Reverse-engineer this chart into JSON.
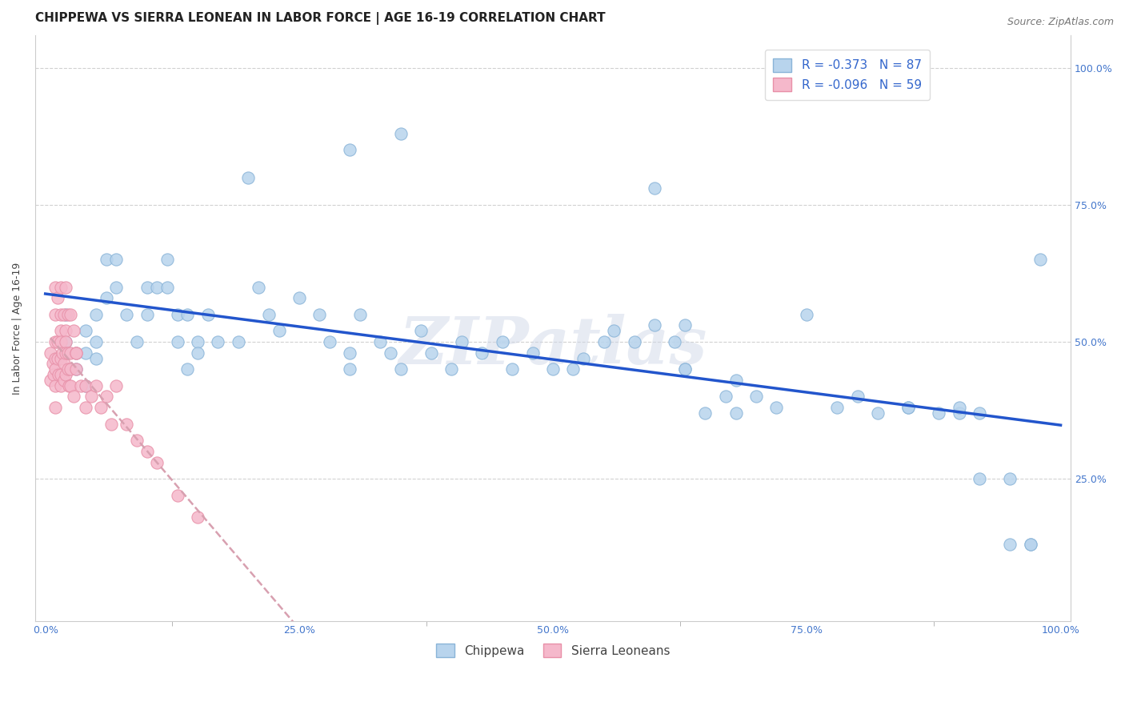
{
  "title": "CHIPPEWA VS SIERRA LEONEAN IN LABOR FORCE | AGE 16-19 CORRELATION CHART",
  "source": "Source: ZipAtlas.com",
  "ylabel": "In Labor Force | Age 16-19",
  "xlim": [
    -0.01,
    1.01
  ],
  "ylim": [
    -0.01,
    1.06
  ],
  "xtick_labels": [
    "0.0%",
    "",
    "25.0%",
    "",
    "50.0%",
    "",
    "75.0%",
    "",
    "100.0%"
  ],
  "xtick_vals": [
    0.0,
    0.125,
    0.25,
    0.375,
    0.5,
    0.625,
    0.75,
    0.875,
    1.0
  ],
  "ytick_labels": [
    "25.0%",
    "50.0%",
    "75.0%",
    "100.0%"
  ],
  "ytick_vals": [
    0.25,
    0.5,
    0.75,
    1.0
  ],
  "chippewa_color": "#b8d4ed",
  "sierra_color": "#f5b8cb",
  "chippewa_edge": "#8ab4d8",
  "sierra_edge": "#e890a8",
  "trend_blue": "#2255cc",
  "trend_pink": "#d8a0b0",
  "R_chippewa": -0.373,
  "N_chippewa": 87,
  "R_sierra": -0.096,
  "N_sierra": 59,
  "background": "#ffffff",
  "grid_color": "#cccccc",
  "watermark": "ZIPatlas",
  "chippewa_x": [
    0.02,
    0.02,
    0.03,
    0.03,
    0.04,
    0.04,
    0.04,
    0.05,
    0.05,
    0.05,
    0.06,
    0.06,
    0.07,
    0.07,
    0.08,
    0.09,
    0.1,
    0.1,
    0.11,
    0.12,
    0.12,
    0.13,
    0.13,
    0.14,
    0.14,
    0.15,
    0.15,
    0.16,
    0.17,
    0.19,
    0.21,
    0.22,
    0.23,
    0.25,
    0.27,
    0.28,
    0.3,
    0.3,
    0.31,
    0.33,
    0.34,
    0.35,
    0.37,
    0.38,
    0.4,
    0.41,
    0.43,
    0.45,
    0.46,
    0.48,
    0.5,
    0.52,
    0.53,
    0.55,
    0.56,
    0.58,
    0.6,
    0.62,
    0.63,
    0.65,
    0.67,
    0.68,
    0.7,
    0.72,
    0.75,
    0.78,
    0.8,
    0.82,
    0.85,
    0.88,
    0.9,
    0.92,
    0.95,
    0.97,
    0.2,
    0.3,
    0.35,
    0.6,
    0.63,
    0.63,
    0.68,
    0.85,
    0.9,
    0.92,
    0.95,
    0.97,
    0.98
  ],
  "chippewa_y": [
    0.55,
    0.5,
    0.48,
    0.45,
    0.52,
    0.48,
    0.42,
    0.55,
    0.5,
    0.47,
    0.65,
    0.58,
    0.6,
    0.65,
    0.55,
    0.5,
    0.6,
    0.55,
    0.6,
    0.65,
    0.6,
    0.55,
    0.5,
    0.55,
    0.45,
    0.5,
    0.48,
    0.55,
    0.5,
    0.5,
    0.6,
    0.55,
    0.52,
    0.58,
    0.55,
    0.5,
    0.48,
    0.45,
    0.55,
    0.5,
    0.48,
    0.45,
    0.52,
    0.48,
    0.45,
    0.5,
    0.48,
    0.5,
    0.45,
    0.48,
    0.45,
    0.45,
    0.47,
    0.5,
    0.52,
    0.5,
    0.53,
    0.5,
    0.45,
    0.37,
    0.4,
    0.37,
    0.4,
    0.38,
    0.55,
    0.38,
    0.4,
    0.37,
    0.38,
    0.37,
    0.37,
    0.37,
    0.13,
    0.13,
    0.8,
    0.85,
    0.88,
    0.78,
    0.53,
    0.45,
    0.43,
    0.38,
    0.38,
    0.25,
    0.25,
    0.13,
    0.65
  ],
  "sierra_x": [
    0.005,
    0.005,
    0.007,
    0.008,
    0.01,
    0.01,
    0.01,
    0.01,
    0.01,
    0.012,
    0.012,
    0.013,
    0.015,
    0.015,
    0.015,
    0.015,
    0.015,
    0.017,
    0.018,
    0.018,
    0.02,
    0.02,
    0.02,
    0.02,
    0.022,
    0.022,
    0.023,
    0.025,
    0.025,
    0.025,
    0.028,
    0.03,
    0.03,
    0.035,
    0.04,
    0.04,
    0.045,
    0.05,
    0.055,
    0.06,
    0.065,
    0.07,
    0.08,
    0.09,
    0.1,
    0.11,
    0.13,
    0.15,
    0.01,
    0.01,
    0.012,
    0.015,
    0.015,
    0.018,
    0.02,
    0.022,
    0.025,
    0.028,
    0.03
  ],
  "sierra_y": [
    0.48,
    0.43,
    0.46,
    0.44,
    0.5,
    0.47,
    0.45,
    0.42,
    0.38,
    0.5,
    0.47,
    0.44,
    0.52,
    0.5,
    0.47,
    0.44,
    0.42,
    0.48,
    0.46,
    0.43,
    0.52,
    0.5,
    0.48,
    0.44,
    0.48,
    0.45,
    0.42,
    0.48,
    0.45,
    0.42,
    0.4,
    0.48,
    0.45,
    0.42,
    0.42,
    0.38,
    0.4,
    0.42,
    0.38,
    0.4,
    0.35,
    0.42,
    0.35,
    0.32,
    0.3,
    0.28,
    0.22,
    0.18,
    0.6,
    0.55,
    0.58,
    0.6,
    0.55,
    0.55,
    0.6,
    0.55,
    0.55,
    0.52,
    0.48
  ],
  "title_fontsize": 11,
  "axis_fontsize": 9,
  "tick_fontsize": 9,
  "legend_fontsize": 11,
  "watermark_fontsize": 60,
  "source_fontsize": 9
}
